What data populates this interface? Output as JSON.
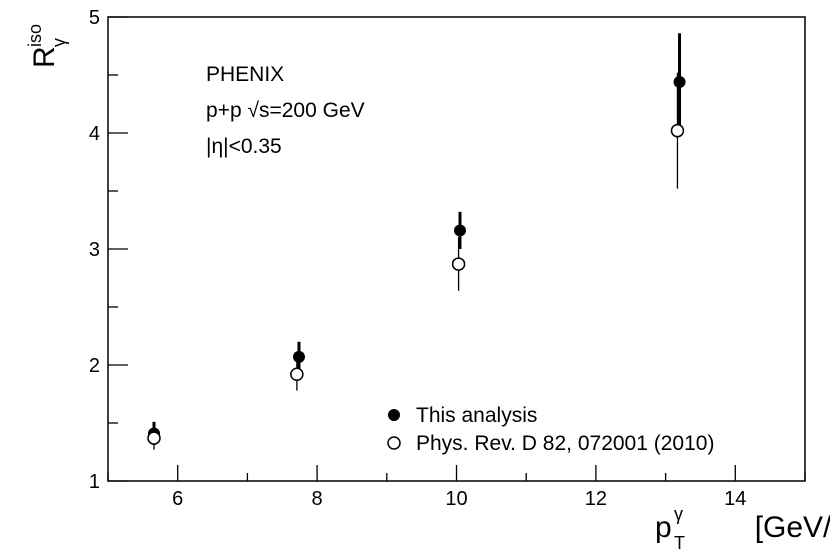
{
  "chart_data": {
    "type": "scatter",
    "xlabel": "p_T^γ [GeV/c]",
    "xlabel_parts": {
      "base": "p",
      "sub": "T",
      "sup": "γ",
      "rest": " [GeV/c]"
    },
    "ylabel": "R_γ^iso",
    "ylabel_parts": {
      "base": "R",
      "sub": "γ",
      "sup": "iso"
    },
    "xlim": [
      5,
      15
    ],
    "ylim": [
      1,
      5
    ],
    "x_ticks": [
      "6",
      "8",
      "10",
      "12",
      "14"
    ],
    "x_tick_values": [
      6,
      8,
      10,
      12,
      14
    ],
    "y_ticks": [
      "1",
      "2",
      "3",
      "4",
      "5"
    ],
    "y_tick_values": [
      1,
      2,
      3,
      4,
      5
    ],
    "annotations": [
      "PHENIX",
      "p+p  √s=200 GeV",
      "|η|<0.35"
    ],
    "legend_placement": "bottom-right",
    "series": [
      {
        "name": "This analysis",
        "marker": "filled-circle",
        "color": "#000000",
        "points": [
          {
            "x": 5.66,
            "y": 1.41,
            "err": 0.1
          },
          {
            "x": 7.74,
            "y": 2.07,
            "err": 0.13
          },
          {
            "x": 10.05,
            "y": 3.16,
            "err": 0.16
          },
          {
            "x": 13.2,
            "y": 4.44,
            "err": 0.42
          }
        ]
      },
      {
        "name": "Phys. Rev. D 82, 072001 (2010)",
        "marker": "open-circle",
        "color": "#000000",
        "points": [
          {
            "x": 5.66,
            "y": 1.37,
            "err": 0.1
          },
          {
            "x": 7.71,
            "y": 1.92,
            "err": 0.14
          },
          {
            "x": 10.03,
            "y": 2.87,
            "err": 0.23
          },
          {
            "x": 13.17,
            "y": 4.02,
            "err": 0.5
          }
        ]
      }
    ]
  }
}
